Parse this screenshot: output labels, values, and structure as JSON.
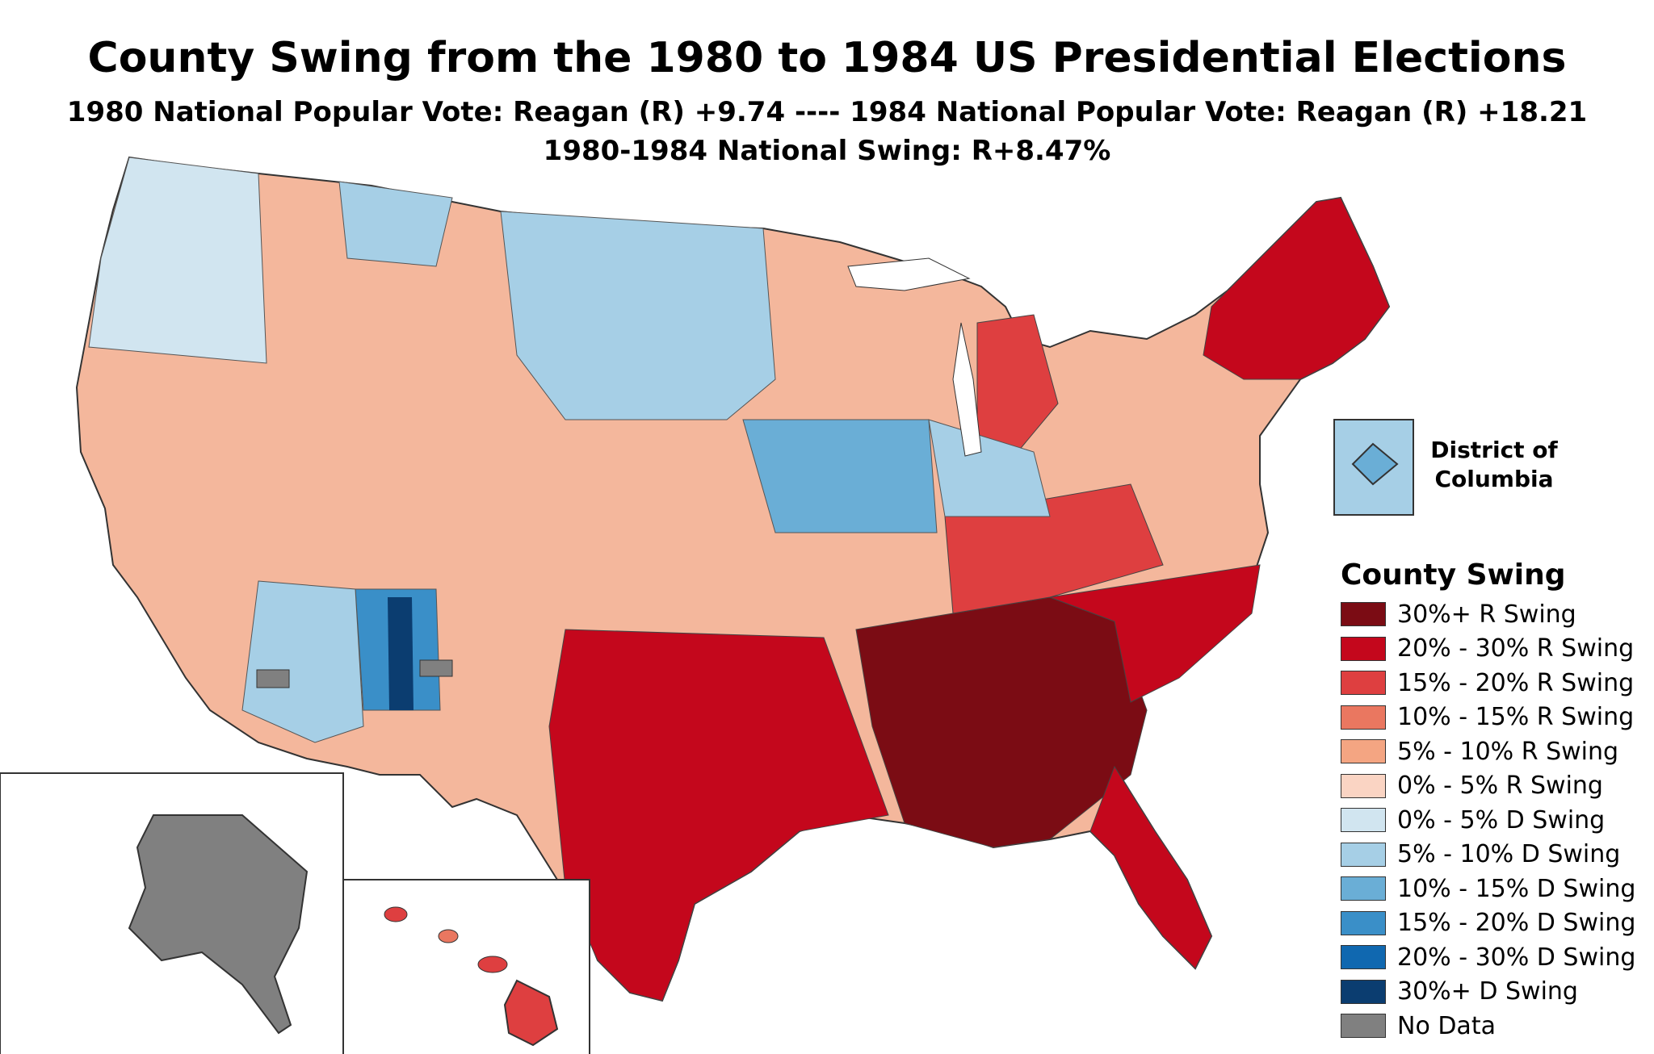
{
  "header": {
    "title": "County Swing from the 1980 to 1984 US Presidential Elections",
    "subtitle_1": "1980 National Popular Vote: Reagan (R) +9.74 ---- 1984 National Popular Vote: Reagan (R) +18.21",
    "subtitle_2": "1980-1984 National Swing: R+8.47%"
  },
  "inset": {
    "dc_label_1": "District of",
    "dc_label_2": "Columbia"
  },
  "legend": {
    "title": "County Swing",
    "items": [
      {
        "label": "30%+ R Swing",
        "color": "#7b0c14"
      },
      {
        "label": "20% - 30% R Swing",
        "color": "#c4071c"
      },
      {
        "label": "15% - 20% R Swing",
        "color": "#de3f40"
      },
      {
        "label": "10% - 15% R Swing",
        "color": "#ea7760"
      },
      {
        "label": "5% - 10% R Swing",
        "color": "#f4a582"
      },
      {
        "label": "0% - 5% R Swing",
        "color": "#fad4c3"
      },
      {
        "label": "0% - 5% D Swing",
        "color": "#d1e5f0"
      },
      {
        "label": "5% - 10% D Swing",
        "color": "#a6cfe6"
      },
      {
        "label": "10% - 15% D Swing",
        "color": "#6aaed6"
      },
      {
        "label": "15% - 20% D Swing",
        "color": "#3a8fc8"
      },
      {
        "label": "20% - 30% D Swing",
        "color": "#1068b0"
      },
      {
        "label": "30%+ D Swing",
        "color": "#0b3d70"
      },
      {
        "label": "No Data",
        "color": "#808080"
      }
    ]
  }
}
